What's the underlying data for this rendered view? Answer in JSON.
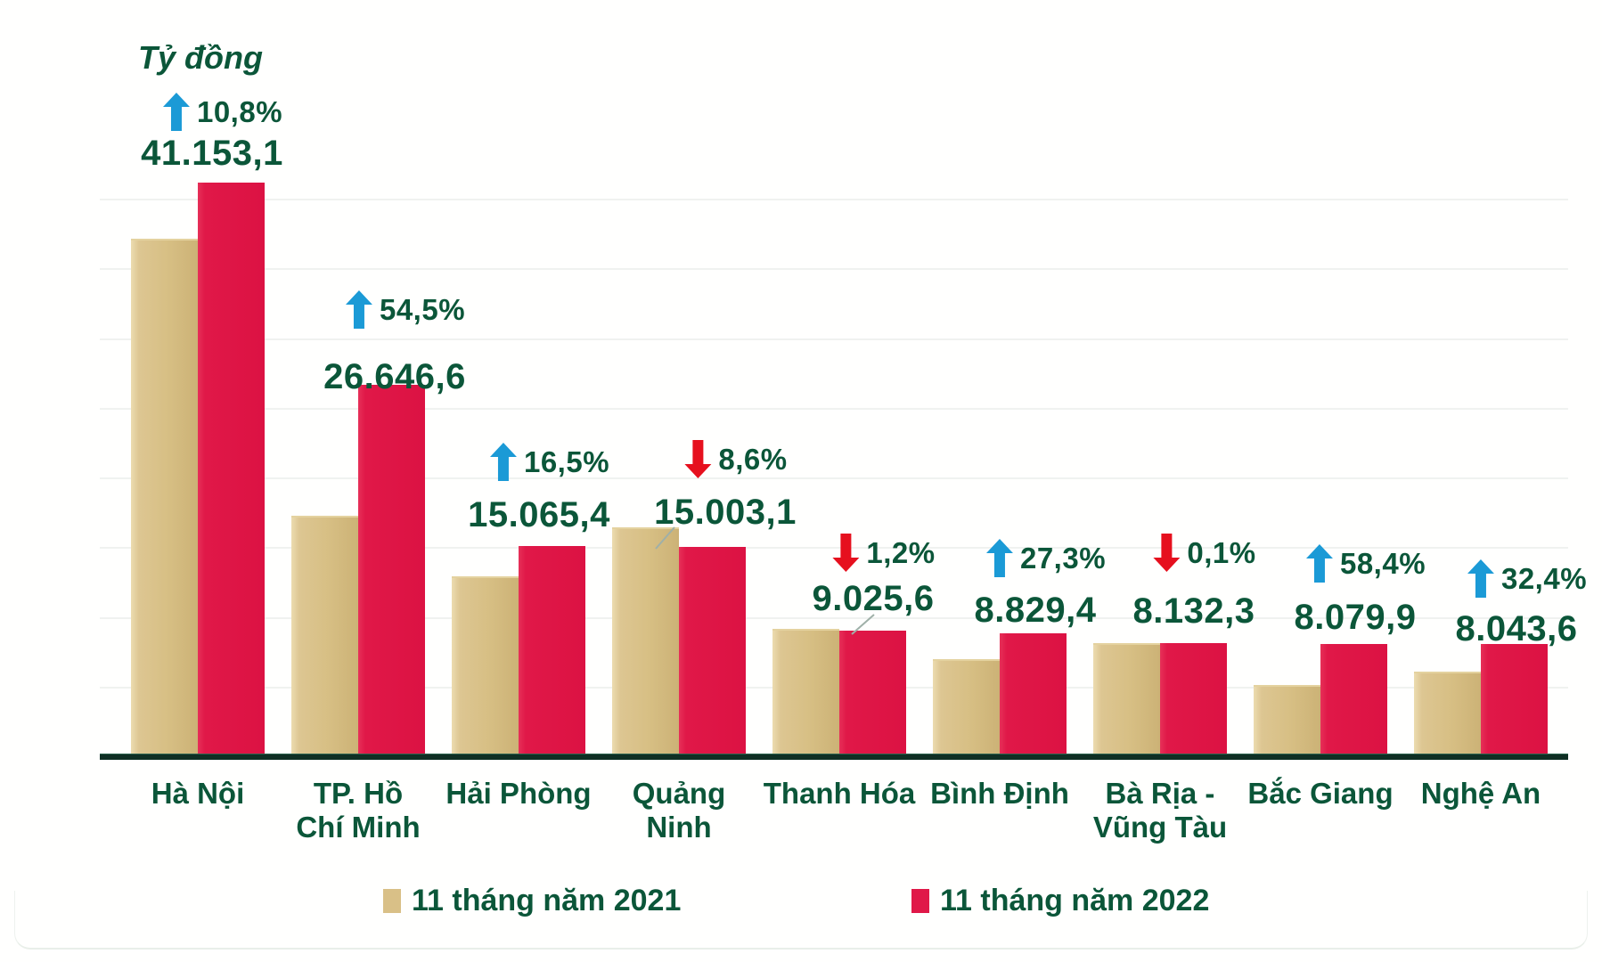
{
  "title": "Tỷ đồng",
  "legend": [
    {
      "label": "11 tháng năm 2021",
      "color": "#d9c087"
    },
    {
      "label": "11 tháng năm 2022",
      "color": "#e01848"
    }
  ],
  "colors": {
    "bar_2021": "#d9c087",
    "bar_2022": "#e01848",
    "text_green": "#0b5639",
    "arrow_up_blue": "#1b9ad6",
    "arrow_down_red": "#e6101e",
    "axis": "#0f2f24"
  },
  "chart_data": {
    "type": "bar",
    "title": "Tỷ đồng",
    "ylabel": "Tỷ đồng",
    "xlabel": "",
    "ylim": [
      0,
      43000
    ],
    "grid": "faint horizontal lines every 5000",
    "legend_position": "bottom",
    "categories": [
      "Hà Nội",
      "TP. Hồ Chí Minh",
      "Hải Phòng",
      "Quảng Ninh",
      "Thanh Hóa",
      "Bình Định",
      "Bà Rịa - Vũng Tàu",
      "Bắc Giang",
      "Nghệ An"
    ],
    "category_lines": [
      [
        "Hà Nội"
      ],
      [
        "TP. Hồ",
        "Chí Minh"
      ],
      [
        "Hải Phòng"
      ],
      [
        "Quảng",
        "Ninh"
      ],
      [
        "Thanh Hóa"
      ],
      [
        "Bình Định"
      ],
      [
        "Bà Rịa -",
        "Vũng Tàu"
      ],
      [
        "Bắc Giang"
      ],
      [
        "Nghệ An"
      ]
    ],
    "series": [
      {
        "name": "11 tháng năm 2021",
        "color": "#d9c087",
        "values_estimated_from_bar_heights": true,
        "values": [
          37141.8,
          17246.9,
          12931.7,
          16414.8,
          9135.2,
          6936.7,
          8140.4,
          5101.0,
          6075.2
        ]
      },
      {
        "name": "11 tháng năm 2022",
        "color": "#e01848",
        "values": [
          41153.1,
          26646.6,
          15065.4,
          15003.1,
          9025.6,
          8829.4,
          8132.3,
          8079.9,
          8043.6
        ],
        "value_labels": [
          "41.153,1",
          "26.646,6",
          "15.065,4",
          "15.003,1",
          "9.025,6",
          "8.829,4",
          "8.132,3",
          "8.079,9",
          "8.043,6"
        ]
      }
    ],
    "change_vs_2021": [
      {
        "direction": "up",
        "label": "10,8%"
      },
      {
        "direction": "up",
        "label": "54,5%"
      },
      {
        "direction": "up",
        "label": "16,5%"
      },
      {
        "direction": "down",
        "label": "8,6%"
      },
      {
        "direction": "down",
        "label": "1,2%"
      },
      {
        "direction": "up",
        "label": "27,3%"
      },
      {
        "direction": "down",
        "label": "0,1%"
      },
      {
        "direction": "up",
        "label": "58,4%"
      },
      {
        "direction": "up",
        "label": "32,4%"
      }
    ]
  }
}
